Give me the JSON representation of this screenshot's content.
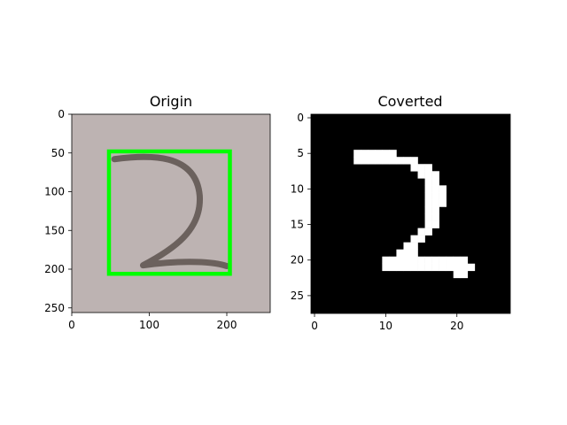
{
  "chart_data": [
    {
      "type": "image",
      "title": "Origin",
      "content": "photo of a handwritten digit 2 on grey paper with a green bounding box",
      "image_size": [
        256,
        256
      ],
      "xlim": [
        0,
        256
      ],
      "ylim": [
        256,
        0
      ],
      "xticks": [
        0,
        100,
        200
      ],
      "yticks": [
        0,
        50,
        100,
        150,
        200,
        250
      ],
      "bounding_box": {
        "x0": 48,
        "y0": 48,
        "x1": 204,
        "y1": 206,
        "color": "#00ff00"
      },
      "colors": {
        "background": "#bdb3b2",
        "stroke": "#6b615d",
        "box": "#00ff00"
      }
    },
    {
      "type": "image",
      "title": "Coverted",
      "content": "28x28 binary image of the digit 2 (white on black)",
      "image_size": [
        28,
        28
      ],
      "xlim": [
        0,
        28
      ],
      "ylim": [
        28,
        0
      ],
      "xticks": [
        0,
        10,
        20
      ],
      "yticks": [
        0,
        5,
        10,
        15,
        20,
        25
      ],
      "white_pixels": [
        [
          5,
          6
        ],
        [
          5,
          7
        ],
        [
          5,
          8
        ],
        [
          5,
          9
        ],
        [
          5,
          10
        ],
        [
          5,
          11
        ],
        [
          6,
          6
        ],
        [
          6,
          7
        ],
        [
          6,
          8
        ],
        [
          6,
          9
        ],
        [
          6,
          10
        ],
        [
          6,
          11
        ],
        [
          6,
          12
        ],
        [
          6,
          13
        ],
        [
          6,
          14
        ],
        [
          7,
          14
        ],
        [
          7,
          15
        ],
        [
          7,
          16
        ],
        [
          8,
          15
        ],
        [
          8,
          16
        ],
        [
          8,
          17
        ],
        [
          9,
          16
        ],
        [
          9,
          17
        ],
        [
          10,
          16
        ],
        [
          10,
          17
        ],
        [
          10,
          18
        ],
        [
          11,
          16
        ],
        [
          11,
          17
        ],
        [
          11,
          18
        ],
        [
          12,
          16
        ],
        [
          12,
          17
        ],
        [
          12,
          18
        ],
        [
          13,
          16
        ],
        [
          13,
          17
        ],
        [
          14,
          16
        ],
        [
          14,
          17
        ],
        [
          15,
          16
        ],
        [
          15,
          17
        ],
        [
          16,
          15
        ],
        [
          16,
          16
        ],
        [
          17,
          14
        ],
        [
          17,
          15
        ],
        [
          18,
          13
        ],
        [
          18,
          14
        ],
        [
          19,
          12
        ],
        [
          19,
          13
        ],
        [
          19,
          14
        ],
        [
          20,
          10
        ],
        [
          20,
          11
        ],
        [
          20,
          12
        ],
        [
          20,
          13
        ],
        [
          20,
          14
        ],
        [
          20,
          15
        ],
        [
          20,
          16
        ],
        [
          20,
          17
        ],
        [
          20,
          18
        ],
        [
          20,
          19
        ],
        [
          20,
          20
        ],
        [
          20,
          21
        ],
        [
          21,
          10
        ],
        [
          21,
          11
        ],
        [
          21,
          12
        ],
        [
          21,
          13
        ],
        [
          21,
          14
        ],
        [
          21,
          15
        ],
        [
          21,
          16
        ],
        [
          21,
          17
        ],
        [
          21,
          18
        ],
        [
          21,
          19
        ],
        [
          21,
          20
        ],
        [
          21,
          21
        ],
        [
          21,
          22
        ],
        [
          22,
          20
        ],
        [
          22,
          21
        ]
      ]
    }
  ]
}
